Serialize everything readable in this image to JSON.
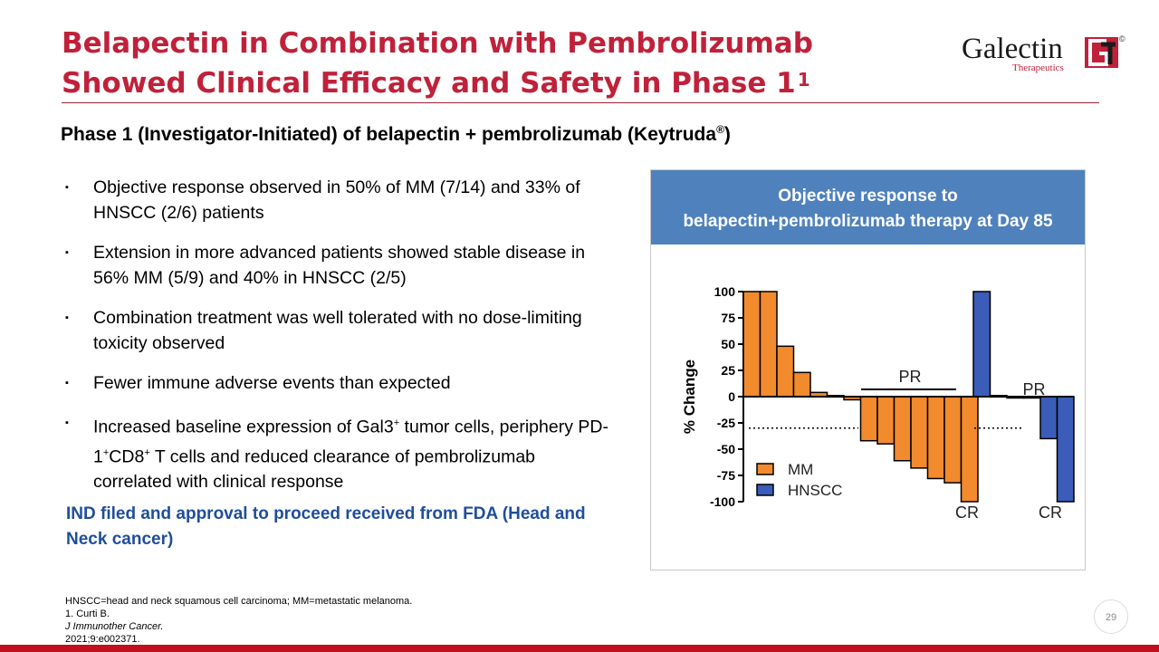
{
  "slide": {
    "title": "Belapectin in Combination with Pembrolizumab Showed Clinical Efficacy and Safety in Phase 1",
    "title_sup": "1",
    "subtitle": "Phase 1 (Investigator-Initiated) of belapectin + pembrolizumab (Keytruda",
    "subtitle_mark": "®",
    "subtitle_end": ")",
    "page_number": "29"
  },
  "logo": {
    "name": "Galectin",
    "sub": "Therapeutics",
    "mark": "©",
    "brand_color": "#c0213a"
  },
  "bullets": [
    {
      "mark": "▪",
      "text": "Objective response observed in 50% of MM (7/14) and 33% of HNSCC (2/6) patients"
    },
    {
      "mark": "▪",
      "text": "Extension in more advanced patients showed stable disease in 56% MM (5/9) and 40% in HNSCC (2/5)"
    },
    {
      "mark": "▪",
      "text": "Combination treatment was well tolerated with no dose-limiting toxicity observed"
    },
    {
      "mark": "▪",
      "text": "Fewer immune adverse events than expected"
    },
    {
      "mark": "▪",
      "p1": "Increased baseline expression of Gal3",
      "s1": "+",
      "p2": " tumor cells, periphery PD-1",
      "s2": "+",
      "p3": "CD8",
      "s3": "+",
      "p4": " T cells and reduced clearance of pembrolizumab correlated with clinical response"
    }
  ],
  "highlight": "IND filed and approval to proceed received from FDA (Head and Neck cancer)",
  "panel": {
    "header_line1": "Objective response to",
    "header_line2": "belapectin+pembrolizumab therapy at Day 85"
  },
  "chart_data": {
    "type": "bar",
    "title": "Objective response to belapectin+pembrolizumab therapy at Day 85",
    "ylabel": "% Change",
    "xlabel": "",
    "ylim": [
      -100,
      100
    ],
    "yticks": [
      100,
      75,
      50,
      25,
      0,
      -25,
      -50,
      -75,
      -100
    ],
    "series": [
      {
        "name": "MM",
        "color": "#f28a2e",
        "values": [
          100,
          100,
          48,
          23,
          4,
          1,
          -3,
          -42,
          -45,
          -61,
          -68,
          -78,
          -82,
          -100
        ]
      },
      {
        "name": "HNSCC",
        "color": "#3b5cb8",
        "values": [
          100,
          1,
          0,
          0,
          -40,
          -100
        ]
      }
    ],
    "threshold": -30,
    "annotations": [
      {
        "text": "PR",
        "group": "MM"
      },
      {
        "text": "CR",
        "group": "MM"
      },
      {
        "text": "PR",
        "group": "HNSCC"
      },
      {
        "text": "CR",
        "group": "HNSCC"
      }
    ],
    "legend": [
      "MM",
      "HNSCC"
    ]
  },
  "footnotes": {
    "line1": "HNSCC=head and neck squamous cell carcinoma; MM=metastatic melanoma.",
    "line2_a": "1. Curti B. ",
    "line2_journal": "J Immunother Cancer.",
    "line2_b": " 2021;9:e002371."
  }
}
